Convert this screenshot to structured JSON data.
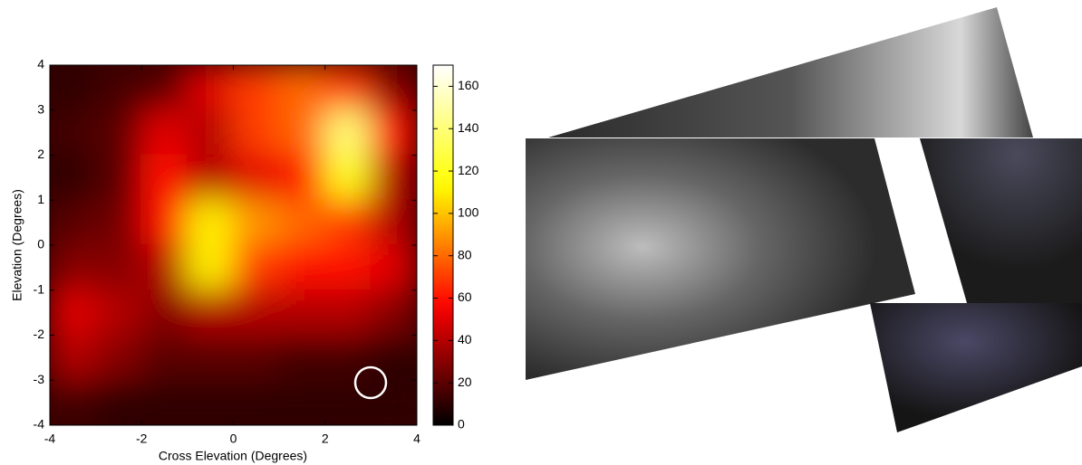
{
  "chart_data": {
    "type": "heatmap",
    "xlabel": "Cross Elevation (Degrees)",
    "ylabel": "Elevation (Degrees)",
    "xlim": [
      -4,
      4
    ],
    "ylim": [
      -4,
      4
    ],
    "xticks": [
      -4,
      -2,
      0,
      2,
      4
    ],
    "yticks": [
      -4,
      -3,
      -2,
      -1,
      0,
      1,
      2,
      3,
      4
    ],
    "colormap": "hot",
    "x": [
      -3.5,
      -2.5,
      -1.5,
      -0.5,
      0.5,
      1.5,
      2.5,
      3.5
    ],
    "y": [
      3.5,
      2.5,
      1.5,
      0.5,
      -0.5,
      -1.5,
      -2.5,
      -3.5
    ],
    "z": [
      [
        10,
        15,
        20,
        50,
        70,
        80,
        70,
        30
      ],
      [
        15,
        20,
        50,
        40,
        70,
        80,
        140,
        60
      ],
      [
        10,
        20,
        60,
        40,
        50,
        60,
        120,
        40
      ],
      [
        20,
        25,
        60,
        110,
        90,
        80,
        70,
        40
      ],
      [
        30,
        30,
        40,
        110,
        70,
        60,
        60,
        50
      ],
      [
        50,
        40,
        30,
        40,
        40,
        40,
        40,
        30
      ],
      [
        40,
        30,
        20,
        20,
        20,
        15,
        15,
        10
      ],
      [
        15,
        10,
        10,
        10,
        10,
        10,
        10,
        10
      ]
    ],
    "colorbar": {
      "lim": [
        0,
        170
      ],
      "ticks": [
        0,
        20,
        40,
        60,
        80,
        100,
        120,
        140,
        160
      ]
    }
  }
}
